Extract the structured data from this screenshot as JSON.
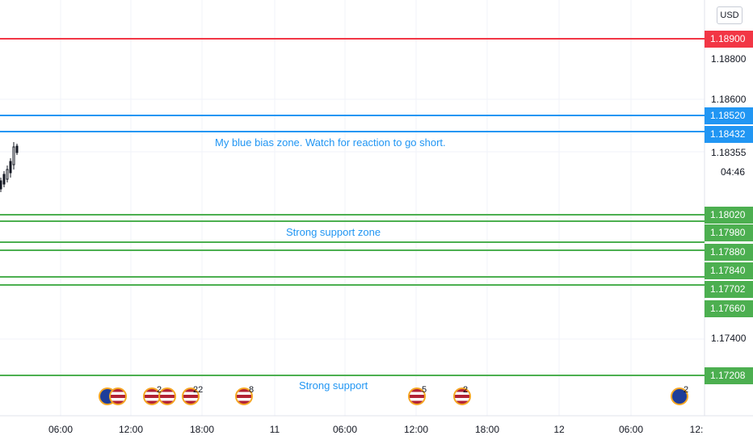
{
  "currency_button": "USD",
  "countdown": "04:46",
  "axis_labels": [
    "1.18800",
    "1.18600",
    "1.18355",
    "1.17400"
  ],
  "price_levels": [
    {
      "label": "1.18900",
      "color": "#f23645"
    },
    {
      "label": "1.18520",
      "color": "#2196f3"
    },
    {
      "label": "1.18432",
      "color": "#2196f3"
    },
    {
      "label": "1.18020",
      "color": "#4caf50"
    },
    {
      "label": "1.17980",
      "color": "#4caf50"
    },
    {
      "label": "1.17880",
      "color": "#4caf50"
    },
    {
      "label": "1.17840",
      "color": "#4caf50"
    },
    {
      "label": "1.17702",
      "color": "#4caf50"
    },
    {
      "label": "1.17660",
      "color": "#4caf50"
    },
    {
      "label": "1.17208",
      "color": "#4caf50"
    }
  ],
  "annotations": [
    {
      "text": "My blue bias zone. Watch for reaction to go short."
    },
    {
      "text": "Strong support zone"
    },
    {
      "text": "Strong support"
    }
  ],
  "x_ticks": [
    "06:00",
    "12:00",
    "18:00",
    "11",
    "06:00",
    "12:00",
    "18:00",
    "12",
    "06:00",
    "12:"
  ],
  "events": [
    {
      "icon": "eu-us-flags-icon",
      "count": ""
    },
    {
      "icon": "us-flags-icon",
      "count": "2"
    },
    {
      "icon": "us-flag-icon",
      "count": "22"
    },
    {
      "icon": "us-flag-icon",
      "count": "8"
    },
    {
      "icon": "us-flag-icon",
      "count": "5"
    },
    {
      "icon": "us-flag-icon",
      "count": "2"
    },
    {
      "icon": "eu-flag-icon",
      "count": "2"
    }
  ]
}
